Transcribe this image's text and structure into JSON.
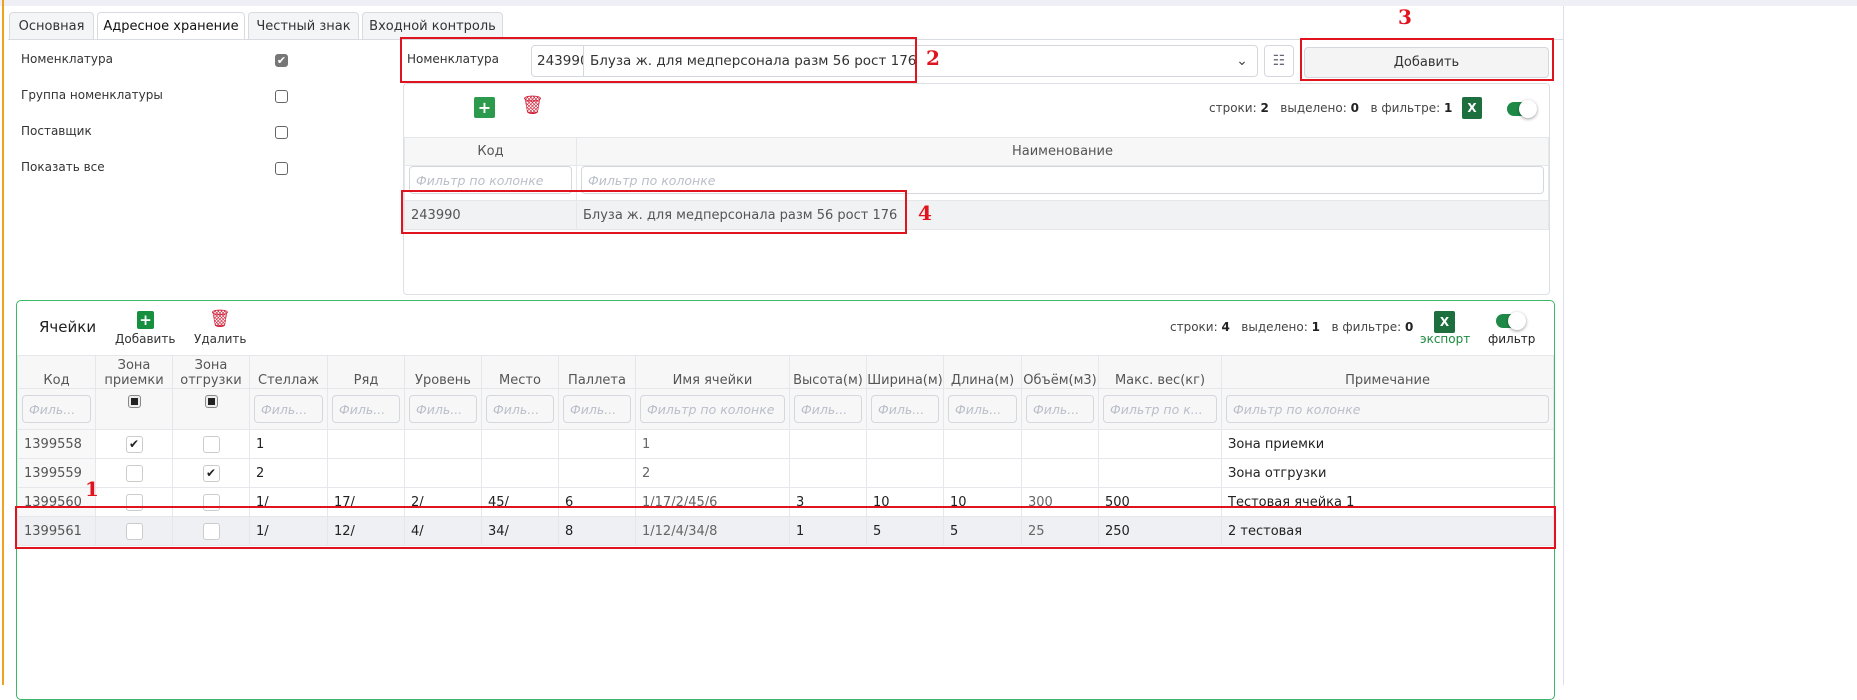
{
  "tabs": [
    {
      "label": "Основная"
    },
    {
      "label": "Адресное хранение",
      "active": true
    },
    {
      "label": "Честный знак"
    },
    {
      "label": "Входной контроль"
    }
  ],
  "options": [
    {
      "label": "Номенклатура",
      "checked": true
    },
    {
      "label": "Группа номенклатуры",
      "checked": false
    },
    {
      "label": "Поставщик",
      "checked": false
    },
    {
      "label": "Показать все",
      "checked": false
    }
  ],
  "nomenclature": {
    "label": "Номенклатура",
    "code": "243990",
    "name": "Блуза ж. для медперсонала разм 56 рост 176",
    "add_button": "Добавить"
  },
  "annotations": {
    "n1": "1",
    "n2": "2",
    "n3": "3",
    "n4": "4"
  },
  "top_grid": {
    "stats": {
      "rows_label": "строки:",
      "rows": "2",
      "selected_label": "выделено:",
      "selected": "0",
      "filter_label": "в фильтре:",
      "filter": "1"
    },
    "excel_icon": "X",
    "columns": [
      "Код",
      "Наименование"
    ],
    "filter_placeholder": "Фильтр по колонке",
    "rows": [
      [
        "243990",
        "Блуза ж. для медперсонала разм 56 рост 176"
      ]
    ]
  },
  "cells": {
    "title": "Ячейки",
    "add_label": "Добавить",
    "delete_label": "Удалить",
    "stats": {
      "rows_label": "строки:",
      "rows": "4",
      "selected_label": "выделено:",
      "selected": "1",
      "filter_label": "в фильтре:",
      "filter": "0"
    },
    "export_label": "экспорт",
    "filter_label": "фильтр",
    "excel_icon": "X",
    "columns": [
      "Код",
      "Зона приемки",
      "Зона отгрузки",
      "Стеллаж",
      "Ряд",
      "Уровень",
      "Место",
      "Паллета",
      "Имя ячейки",
      "Высота(м)",
      "Ширина(м)",
      "Длина(м)",
      "Объём(м3)",
      "Макс. вес(кг)",
      "Примечание"
    ],
    "filter_short": "Филь...",
    "filter_full": "Фильтр по колонке",
    "filter_mid": "Фильтр по к...",
    "rows": [
      {
        "code": "1399558",
        "recv": true,
        "ship": false,
        "rack": "1",
        "row": "",
        "level": "",
        "place": "",
        "pallet": "",
        "name": "1",
        "h": "",
        "w": "",
        "l": "",
        "vol": "",
        "maxw": "",
        "note": "Зона приемки"
      },
      {
        "code": "1399559",
        "recv": false,
        "ship": true,
        "rack": "2",
        "row": "",
        "level": "",
        "place": "",
        "pallet": "",
        "name": "2",
        "h": "",
        "w": "",
        "l": "",
        "vol": "",
        "maxw": "",
        "note": "Зона отгрузки"
      },
      {
        "code": "1399560",
        "recv": false,
        "ship": false,
        "rack": "1/",
        "row": "17/",
        "level": "2/",
        "place": "45/",
        "pallet": "6",
        "name": "1/17/2/45/6",
        "h": "3",
        "w": "10",
        "l": "10",
        "vol": "300",
        "maxw": "500",
        "note": "Тестовая ячейка 1"
      },
      {
        "code": "1399561",
        "recv": false,
        "ship": false,
        "rack": "1/",
        "row": "12/",
        "level": "4/",
        "place": "34/",
        "pallet": "8",
        "name": "1/12/4/34/8",
        "h": "1",
        "w": "5",
        "l": "5",
        "vol": "25",
        "maxw": "250",
        "note": "2 тестовая",
        "selected": true
      }
    ]
  }
}
